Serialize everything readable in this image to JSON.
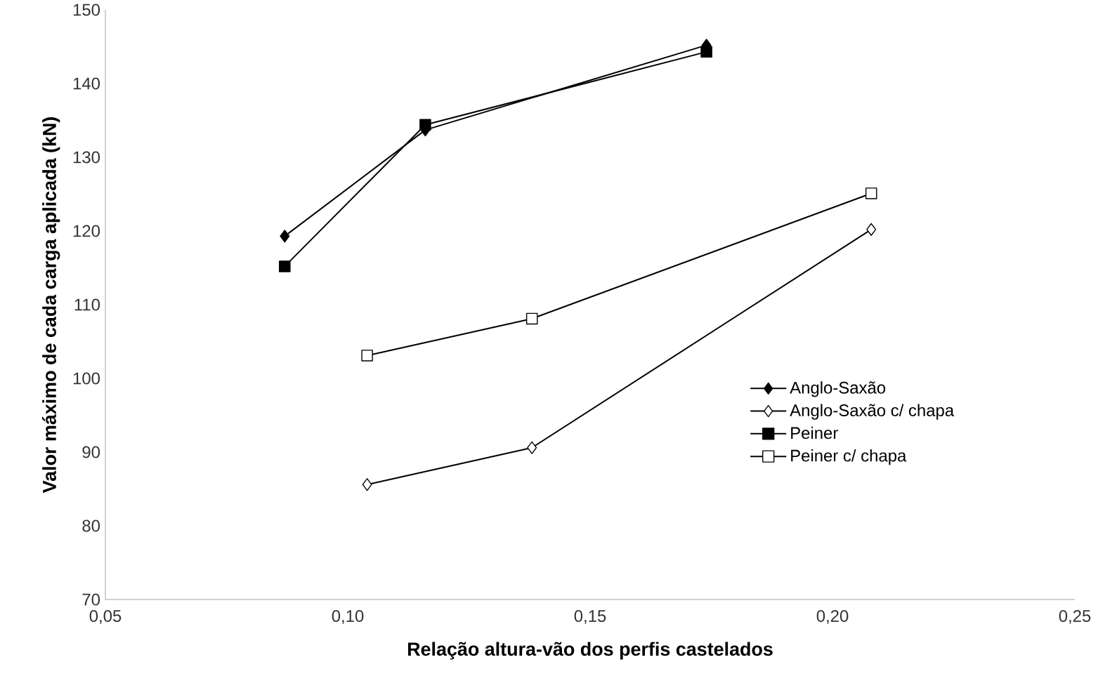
{
  "chart_data": {
    "type": "line",
    "xlabel": "Relação altura-vão dos perfis castelados",
    "ylabel": "Valor máximo de cada carga aplicada (kN)",
    "xlim": [
      0.05,
      0.25
    ],
    "xticks": [
      {
        "value": 0.05,
        "label": "0,05"
      },
      {
        "value": 0.1,
        "label": "0,10"
      },
      {
        "value": 0.15,
        "label": "0,15"
      },
      {
        "value": 0.2,
        "label": "0,20"
      },
      {
        "value": 0.25,
        "label": "0,25"
      }
    ],
    "ylim": [
      70,
      150
    ],
    "yticks": [
      70,
      80,
      90,
      100,
      110,
      120,
      130,
      140,
      150
    ],
    "legend": "right",
    "line_style": "solid",
    "series": [
      {
        "name": "Anglo-Saxão",
        "color": "#000000",
        "marker": "diamond",
        "x": [
          0.087,
          0.116,
          0.174
        ],
        "values": [
          119.3,
          133.7,
          145.2
        ]
      },
      {
        "name": "Anglo-Saxão c/ chapa",
        "color": "#ffffff",
        "marker": "diamond",
        "x": [
          0.104,
          0.138,
          0.208
        ],
        "values": [
          85.6,
          90.6,
          120.2
        ]
      },
      {
        "name": "Peiner",
        "color": "#000000",
        "marker": "square",
        "x": [
          0.087,
          0.116,
          0.174
        ],
        "values": [
          115.2,
          134.4,
          144.3
        ]
      },
      {
        "name": "Peiner c/ chapa",
        "color": "#ffffff",
        "marker": "square",
        "x": [
          0.104,
          0.138,
          0.208
        ],
        "values": [
          103.1,
          108.1,
          125.1
        ]
      }
    ]
  }
}
